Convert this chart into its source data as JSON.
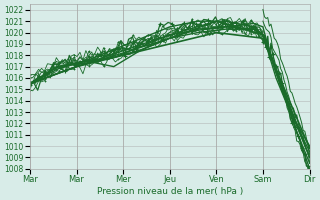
{
  "title": "",
  "xlabel": "Pression niveau de la mer( hPa )",
  "ylabel": "",
  "bg_color": "#d8ece8",
  "plot_bg_color": "#d8ece8",
  "grid_color": "#aaaaaa",
  "line_color": "#1a6b2a",
  "ylim": [
    1008,
    1022.5
  ],
  "yticks": [
    1008,
    1009,
    1010,
    1011,
    1012,
    1013,
    1014,
    1015,
    1016,
    1017,
    1018,
    1019,
    1020,
    1021,
    1022
  ],
  "xtick_labels": [
    "Mar",
    "Mar",
    "Mer",
    "Jeu",
    "Ven",
    "Sam",
    "Dir"
  ],
  "xtick_positions": [
    0,
    0.167,
    0.333,
    0.5,
    0.667,
    0.833,
    1.0
  ],
  "curves": [
    {
      "x": [
        0.0,
        0.1,
        0.2,
        0.3,
        0.4,
        0.5,
        0.6,
        0.7,
        0.8,
        0.833,
        0.85,
        0.88,
        0.92,
        0.96,
        1.0
      ],
      "y": [
        1015.5,
        1017.0,
        1017.5,
        1018.5,
        1019.5,
        1020.5,
        1021.0,
        1021.0,
        1020.5,
        1019.8,
        1019.0,
        1016.5,
        1014.0,
        1011.5,
        1009.5
      ],
      "linewidth": 1.0
    },
    {
      "x": [
        0.0,
        0.1,
        0.2,
        0.3,
        0.4,
        0.5,
        0.6,
        0.7,
        0.8,
        0.833,
        0.86,
        0.9,
        0.95,
        1.0
      ],
      "y": [
        1015.5,
        1017.0,
        1017.5,
        1017.0,
        1018.5,
        1019.5,
        1020.3,
        1020.5,
        1020.8,
        1020.5,
        1018.0,
        1015.0,
        1012.0,
        1009.0
      ],
      "linewidth": 1.0
    },
    {
      "x": [
        0.0,
        0.1,
        0.2,
        0.3,
        0.4,
        0.5,
        0.6,
        0.7,
        0.8,
        0.833,
        0.87,
        0.91,
        0.95,
        1.0
      ],
      "y": [
        1015.5,
        1016.8,
        1017.5,
        1017.8,
        1018.8,
        1019.8,
        1020.2,
        1020.5,
        1020.3,
        1019.8,
        1017.5,
        1014.5,
        1011.5,
        1008.5
      ],
      "linewidth": 1.0
    },
    {
      "x": [
        0.0,
        0.1,
        0.2,
        0.3,
        0.4,
        0.5,
        0.6,
        0.7,
        0.8,
        0.833,
        0.88,
        0.93,
        1.0
      ],
      "y": [
        1015.5,
        1017.0,
        1017.3,
        1017.8,
        1018.5,
        1019.5,
        1020.0,
        1020.3,
        1020.3,
        1019.8,
        1016.0,
        1013.0,
        1010.0
      ],
      "linewidth": 1.0
    },
    {
      "x": [
        0.0,
        0.167,
        0.333,
        0.5,
        0.667,
        0.833,
        1.0
      ],
      "y": [
        1015.5,
        1017.0,
        1018.0,
        1019.0,
        1020.0,
        1019.5,
        1009.8
      ],
      "linewidth": 1.2
    },
    {
      "x": [
        0.0,
        0.167,
        0.333,
        0.5,
        0.667,
        0.833,
        1.0
      ],
      "y": [
        1015.5,
        1017.0,
        1018.2,
        1019.5,
        1021.0,
        1019.8,
        1008.0
      ],
      "linewidth": 1.0
    },
    {
      "x": [
        0.0,
        0.167,
        0.5,
        0.667,
        0.833,
        1.0
      ],
      "y": [
        1015.5,
        1017.0,
        1019.8,
        1021.0,
        1019.8,
        1009.0
      ],
      "linewidth": 1.0
    }
  ]
}
